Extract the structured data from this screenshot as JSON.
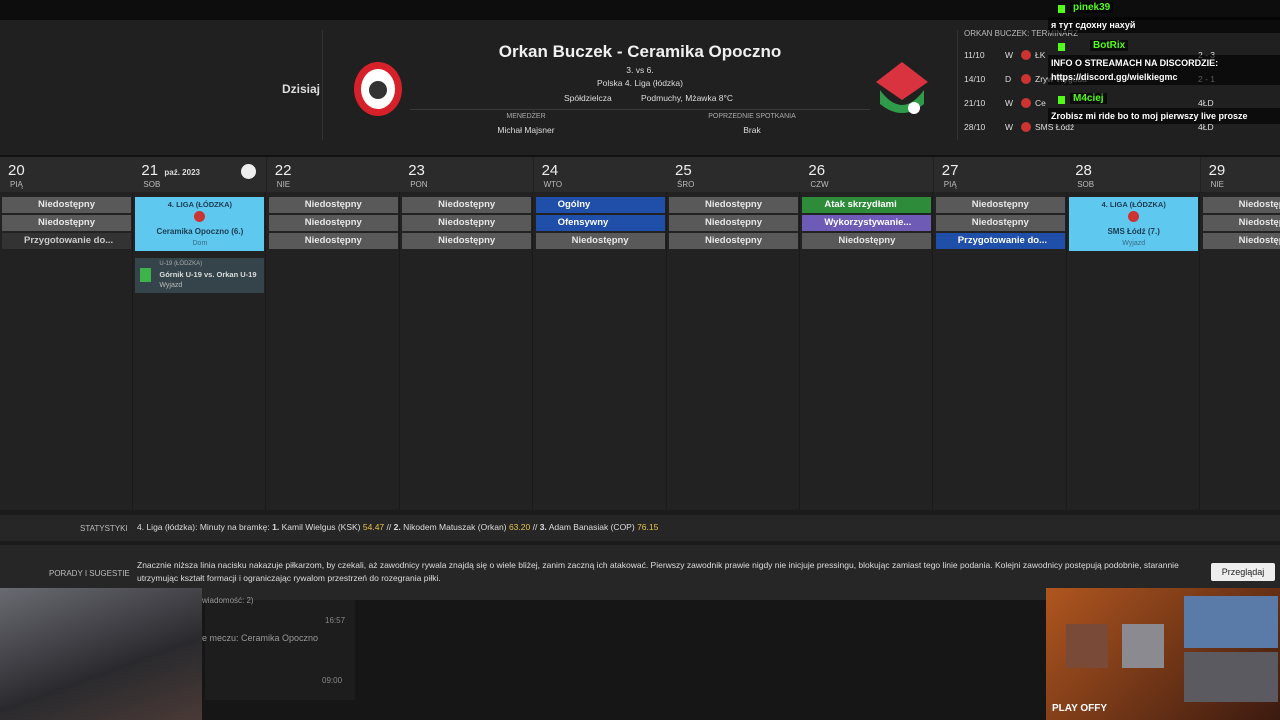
{
  "header": {
    "today": "Dzisiaj",
    "title": "Orkan Buczek - Ceramika Opoczno",
    "round": "3. vs 6.",
    "league": "Polska 4. Liga (łódzka)",
    "stadium": "Spółdzielcza",
    "weather": "Podmuchy, Mżawka 8°C",
    "manager_label": "MENEDŻER",
    "manager": "Michał Majsner",
    "previous_label": "POPRZEDNIE SPOTKANIA",
    "previous": "Brak"
  },
  "fixtures": {
    "title": "ORKAN BUCZEK: TERMINARZ",
    "rows": [
      {
        "date": "11/10",
        "result": "W",
        "team": "ŁK",
        "score": "2 - 3"
      },
      {
        "date": "14/10",
        "result": "D",
        "team": "Zryw Wygoda",
        "score": "2 - 1"
      },
      {
        "date": "21/10",
        "result": "W",
        "team": "Ce",
        "score": "4ŁD"
      },
      {
        "date": "28/10",
        "result": "W",
        "team": "SMS Łódź",
        "score": "4ŁD"
      }
    ]
  },
  "chat": [
    {
      "user": "pinek39",
      "text": "я тут сдохну нахуй"
    },
    {
      "user": "BotRix",
      "text": "INFO O STREAMACH NA DISCORDZIE: https://discord.gg/wielkiegmc"
    },
    {
      "user": "M4ciej",
      "text": "Zrobisz mi ride bo to moj pierwszy live prosze"
    }
  ],
  "days": [
    {
      "num": "20",
      "dow": "PIĄ",
      "items": [
        {
          "text": "Niedostępny",
          "kind": "grey"
        },
        {
          "text": "Niedostępny",
          "kind": "grey"
        },
        {
          "text": "Przygotowanie do...",
          "kind": "dark"
        }
      ]
    },
    {
      "num": "21",
      "dow": "SOB",
      "month": "paź. 2023",
      "match": {
        "competition": "4. LIGA (ŁÓDZKA)",
        "opponent": "Ceramika Opoczno (6.)",
        "venue": "Dom"
      },
      "event": {
        "competition": "U-19 (ŁÓDZKA)",
        "name": "Górnik U-19 vs. Orkan U-19",
        "venue": "Wyjazd"
      }
    },
    {
      "num": "22",
      "dow": "NIE",
      "items": [
        {
          "text": "Niedostępny",
          "kind": "grey"
        },
        {
          "text": "Niedostępny",
          "kind": "grey"
        },
        {
          "text": "Niedostępny",
          "kind": "grey"
        }
      ]
    },
    {
      "num": "23",
      "dow": "PON",
      "items": [
        {
          "text": "Niedostępny",
          "kind": "grey"
        },
        {
          "text": "Niedostępny",
          "kind": "grey"
        },
        {
          "text": "Niedostępny",
          "kind": "grey"
        }
      ]
    },
    {
      "num": "24",
      "dow": "WTO",
      "items": [
        {
          "text": "Ogólny",
          "kind": "blue"
        },
        {
          "text": "Ofensywny",
          "kind": "blue"
        },
        {
          "text": "Niedostępny",
          "kind": "grey"
        }
      ]
    },
    {
      "num": "25",
      "dow": "ŚRO",
      "items": [
        {
          "text": "Niedostępny",
          "kind": "grey"
        },
        {
          "text": "Niedostępny",
          "kind": "grey"
        },
        {
          "text": "Niedostępny",
          "kind": "grey"
        }
      ]
    },
    {
      "num": "26",
      "dow": "CZW",
      "items": [
        {
          "text": "Atak skrzydłami",
          "kind": "green"
        },
        {
          "text": "Wykorzystywanie...",
          "kind": "purple"
        },
        {
          "text": "Niedostępny",
          "kind": "grey"
        }
      ]
    },
    {
      "num": "27",
      "dow": "PIĄ",
      "items": [
        {
          "text": "Niedostępny",
          "kind": "grey"
        },
        {
          "text": "Niedostępny",
          "kind": "grey"
        },
        {
          "text": "Przygotowanie do...",
          "kind": "blue"
        }
      ]
    },
    {
      "num": "28",
      "dow": "SOB",
      "match": {
        "competition": "4. LIGA (ŁÓDZKA)",
        "opponent": "SMS Łódź (7.)",
        "venue": "Wyjazd"
      }
    },
    {
      "num": "29",
      "dow": "NIE",
      "items": [
        {
          "text": "Niedostępny",
          "kind": "grey"
        },
        {
          "text": "Niedostępny",
          "kind": "grey"
        },
        {
          "text": "Niedostępny",
          "kind": "grey"
        }
      ]
    }
  ],
  "stats": {
    "label": "STATYSTYKI",
    "prefix": "4. Liga (łódzka): Minuty na bramkę:",
    "separator": "//",
    "entries": [
      {
        "rank": "1.",
        "name": "Kamil Wielgus (KSK)",
        "value": "54.47"
      },
      {
        "rank": "2.",
        "name": "Nikodem Matuszak (Orkan)",
        "value": "63.20"
      },
      {
        "rank": "3.",
        "name": "Adam Banasiak (COP)",
        "value": "76.15"
      }
    ]
  },
  "tips": {
    "label": "PORADY I SUGESTIE",
    "text": "Znacznie niższa linia nacisku nakazuje piłkarzom, by czekali, aż zawodnicy rywala znajdą się o wiele bliżej, zanim zaczną ich atakować. Pierwszy zawodnik prawie nigdy nie inicjuje pressingu, blokując zamiast tego linie podania. Kolejni zawodnicy postępują podobnie, starannie utrzymując kształt formacji i ograniczając rywalom przestrzeń do rozegrania piłki.",
    "button": "Przeglądaj"
  },
  "inbox": {
    "count": "wiadomość: 2)",
    "time1": "16:57",
    "subject": "e meczu: Ceramika Opoczno",
    "time2": "09:00"
  },
  "overlay": {
    "brand": "PLAY OFFY"
  }
}
